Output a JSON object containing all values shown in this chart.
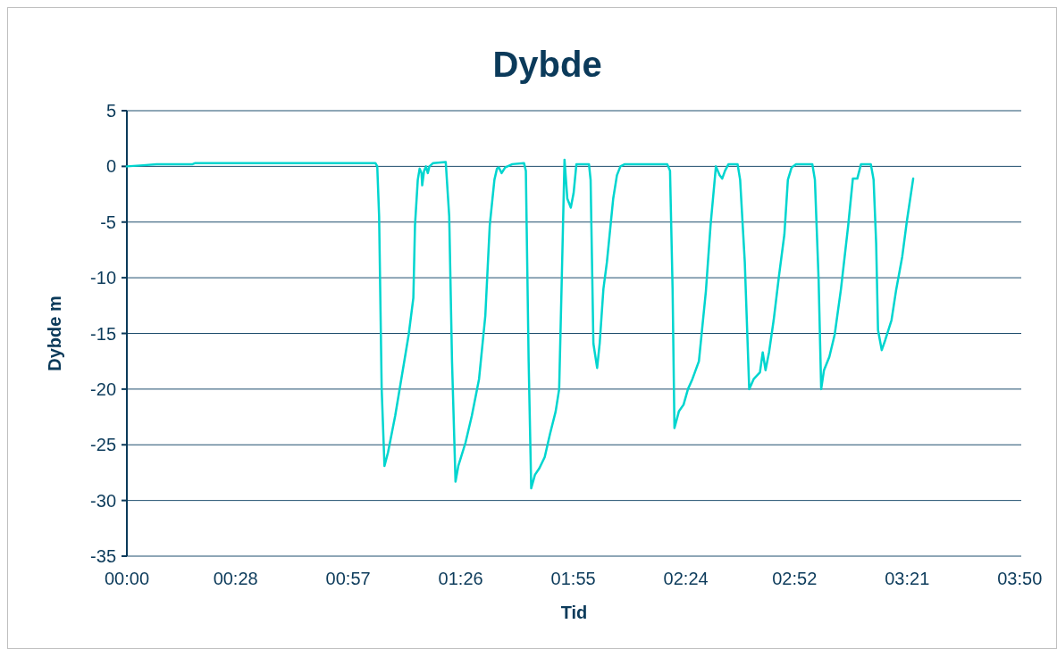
{
  "chart_data": {
    "type": "line",
    "title": "Dybde",
    "xlabel": "Tid",
    "ylabel": "Dybde m",
    "grid": "y",
    "marker": "none",
    "line_style": "solid",
    "xlim": [
      0,
      3.84
    ],
    "xticks": [
      {
        "value": 0,
        "label": "00:00"
      },
      {
        "value": 0.4667,
        "label": "00:28"
      },
      {
        "value": 0.95,
        "label": "00:57"
      },
      {
        "value": 1.4333,
        "label": "01:26"
      },
      {
        "value": 1.9167,
        "label": "01:55"
      },
      {
        "value": 2.4,
        "label": "02:24"
      },
      {
        "value": 2.8667,
        "label": "02:52"
      },
      {
        "value": 3.35,
        "label": "03:21"
      },
      {
        "value": 3.8333,
        "label": "03:50"
      }
    ],
    "ylim": [
      -35,
      5
    ],
    "yticks": [
      -35,
      -30,
      -25,
      -20,
      -15,
      -10,
      -5,
      0,
      5
    ],
    "series": [
      {
        "color": "#00d5cf",
        "x": [
          0,
          0.07,
          0.128,
          0.282,
          0.294,
          1.067,
          1.075,
          1.083,
          1.094,
          1.106,
          1.121,
          1.152,
          1.191,
          1.21,
          1.23,
          1.237,
          1.249,
          1.257,
          1.265,
          1.268,
          1.276,
          1.284,
          1.292,
          1.299,
          1.315,
          1.369,
          1.384,
          1.396,
          1.411,
          1.423,
          1.454,
          1.481,
          1.512,
          1.539,
          1.558,
          1.578,
          1.589,
          1.597,
          1.609,
          1.624,
          1.655,
          1.705,
          1.713,
          1.725,
          1.736,
          1.752,
          1.771,
          1.794,
          1.817,
          1.841,
          1.856,
          1.868,
          1.879,
          1.891,
          1.906,
          1.918,
          1.93,
          1.984,
          1.991,
          2.003,
          2.019,
          2.03,
          2.046,
          2.061,
          2.088,
          2.104,
          2.119,
          2.138,
          2.32,
          2.332,
          2.343,
          2.351,
          2.37,
          2.39,
          2.409,
          2.428,
          2.456,
          2.486,
          2.506,
          2.529,
          2.545,
          2.556,
          2.568,
          2.583,
          2.622,
          2.633,
          2.653,
          2.672,
          2.691,
          2.718,
          2.73,
          2.742,
          2.757,
          2.777,
          2.8,
          2.823,
          2.838,
          2.854,
          2.873,
          2.943,
          2.954,
          2.97,
          2.981,
          2.993,
          3.016,
          3.039,
          3.066,
          3.097,
          3.117,
          3.136,
          3.152,
          3.194,
          3.206,
          3.217,
          3.225,
          3.241,
          3.256,
          3.283,
          3.302,
          3.329,
          3.349,
          3.376
        ],
        "values": [
          0,
          0.1,
          0.2,
          0.2,
          0.3,
          0.3,
          0,
          -4.5,
          -20,
          -26.9,
          -25.7,
          -22.4,
          -17.5,
          -15.1,
          -11.8,
          -5.3,
          -1.2,
          -0.2,
          -0.6,
          -1.7,
          -0.4,
          0,
          -0.6,
          0,
          0.3,
          0.4,
          -4.5,
          -17.5,
          -28.3,
          -26.9,
          -24.8,
          -22.4,
          -19.1,
          -13.4,
          -5.3,
          -1.2,
          -0.2,
          -0.1,
          -0.6,
          -0.1,
          0.2,
          0.3,
          -0.4,
          -17.5,
          -28.9,
          -27.7,
          -27.1,
          -26.1,
          -24.0,
          -22.0,
          -20.0,
          -9.4,
          0.6,
          -2.9,
          -3.7,
          -2.4,
          0.2,
          0.2,
          -1.2,
          -15.9,
          -18.1,
          -15.9,
          -11.0,
          -8.6,
          -2.9,
          -0.8,
          0,
          0.2,
          0.2,
          -0.4,
          -11.0,
          -23.5,
          -22.0,
          -21.4,
          -20.0,
          -19.1,
          -17.5,
          -11.2,
          -5.3,
          0,
          -0.8,
          -1.1,
          -0.4,
          0.2,
          0.2,
          -1.2,
          -8.6,
          -20.0,
          -19.1,
          -18.5,
          -16.7,
          -18.3,
          -16.7,
          -13.8,
          -9.8,
          -6.1,
          -1.2,
          -0.1,
          0.2,
          0.2,
          -1.2,
          -10.2,
          -20.0,
          -18.3,
          -17.1,
          -15.1,
          -11.0,
          -5.3,
          -1.1,
          -1.1,
          0.2,
          0.2,
          -1.2,
          -6.9,
          -14.7,
          -16.5,
          -15.6,
          -13.8,
          -11.2,
          -8.1,
          -4.9,
          -1.1
        ]
      }
    ]
  }
}
